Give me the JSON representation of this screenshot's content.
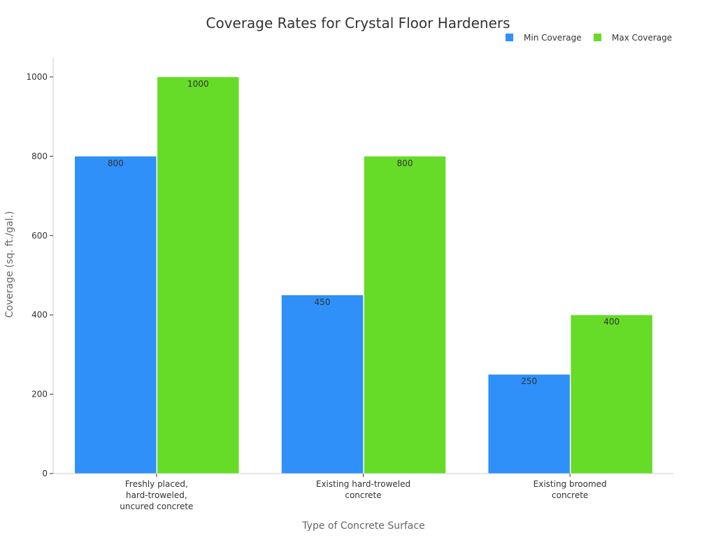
{
  "chart_data": {
    "type": "bar",
    "title": "Coverage Rates for Crystal Floor Hardeners",
    "xlabel": "Type of Concrete Surface",
    "ylabel": "Coverage (sq. ft./gal.)",
    "categories": [
      [
        "Freshly placed,",
        "hard-troweled,",
        "uncured concrete"
      ],
      [
        "Existing hard-troweled",
        "concrete"
      ],
      [
        "Existing broomed",
        "concrete"
      ]
    ],
    "series": [
      {
        "name": "Min Coverage",
        "color": "#2e90f8",
        "values": [
          800,
          450,
          250
        ]
      },
      {
        "name": "Max Coverage",
        "color": "#66db28",
        "values": [
          1000,
          800,
          400
        ]
      }
    ],
    "ylim": [
      0,
      1050
    ],
    "yticks": [
      0,
      200,
      400,
      600,
      800,
      1000
    ],
    "grid": false,
    "legend": "top-right",
    "data_labels": true
  }
}
